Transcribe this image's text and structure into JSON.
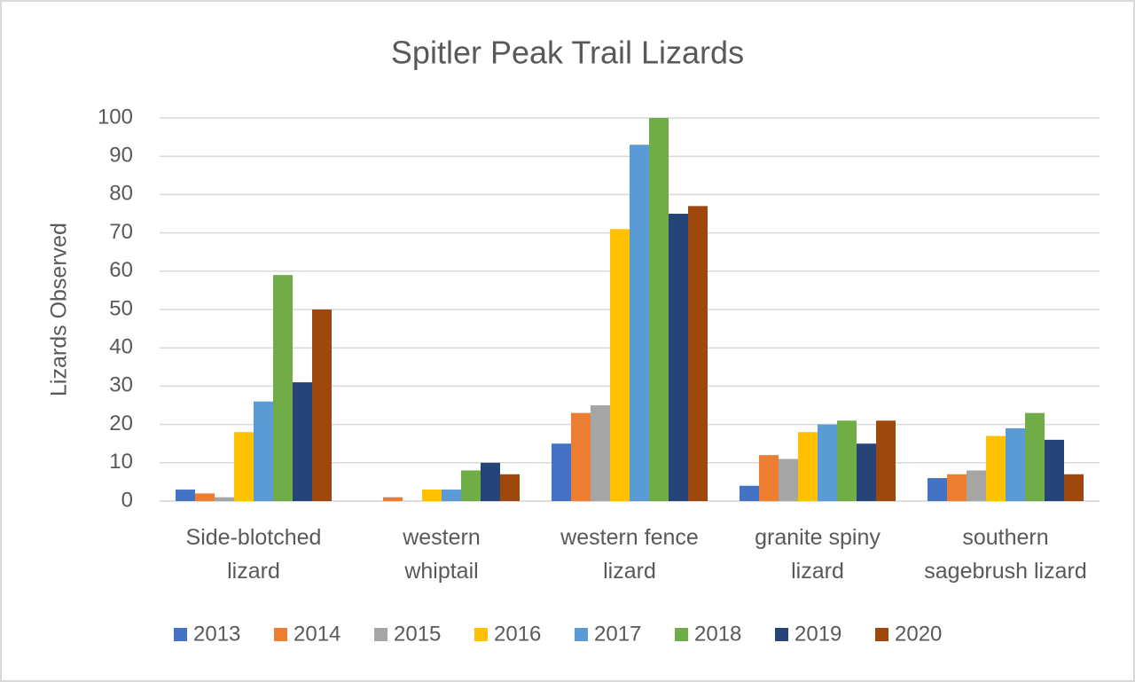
{
  "chart_data": {
    "type": "bar",
    "title": "Spitler Peak Trail Lizards",
    "y_label": "Lizards Observed",
    "categories": [
      "Side-blotched\nlizard",
      "western\nwhiptail",
      "western fence\nlizard",
      "granite spiny\nlizard",
      "southern\nsagebrush lizard"
    ],
    "series": [
      {
        "name": "2013",
        "color": "#4472c4",
        "values": [
          3,
          0,
          15,
          4,
          6
        ]
      },
      {
        "name": "2014",
        "color": "#ed7d31",
        "values": [
          2,
          1,
          23,
          12,
          7
        ]
      },
      {
        "name": "2015",
        "color": "#a5a5a5",
        "values": [
          1,
          0,
          25,
          11,
          8
        ]
      },
      {
        "name": "2016",
        "color": "#ffc000",
        "values": [
          18,
          3,
          71,
          18,
          17
        ]
      },
      {
        "name": "2017",
        "color": "#5b9bd5",
        "values": [
          26,
          3,
          93,
          20,
          19
        ]
      },
      {
        "name": "2018",
        "color": "#70ad47",
        "values": [
          59,
          8,
          100,
          21,
          23
        ]
      },
      {
        "name": "2019",
        "color": "#264478",
        "values": [
          31,
          10,
          75,
          15,
          16
        ]
      },
      {
        "name": "2020",
        "color": "#9e480e",
        "values": [
          50,
          7,
          77,
          21,
          7
        ]
      }
    ],
    "ylim": [
      0,
      100
    ],
    "yticks": [
      0,
      10,
      20,
      30,
      40,
      50,
      60,
      70,
      80,
      90,
      100
    ],
    "grid": true,
    "legend": "bottom"
  }
}
